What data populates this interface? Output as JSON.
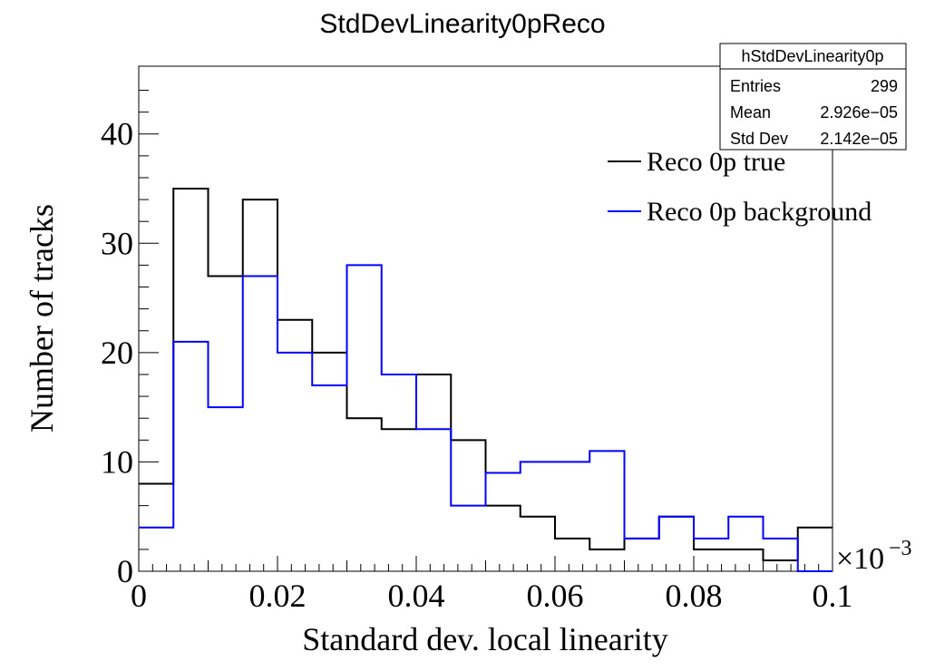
{
  "chart_data": {
    "type": "histogram",
    "title": "StdDevLinearity0pReco",
    "xlabel": "Standard dev. local linearity",
    "ylabel": "Number of tracks",
    "x_exponent_label": "×10",
    "x_exponent_power": "−3",
    "xlim": [
      0,
      0.1
    ],
    "ylim": [
      0,
      46.2
    ],
    "x_ticks": [
      {
        "value": 0,
        "label": "0"
      },
      {
        "value": 0.02,
        "label": "0.02"
      },
      {
        "value": 0.04,
        "label": "0.04"
      },
      {
        "value": 0.06,
        "label": "0.06"
      },
      {
        "value": 0.08,
        "label": "0.08"
      },
      {
        "value": 0.1,
        "label": "0.1"
      }
    ],
    "y_ticks": [
      {
        "value": 0,
        "label": "0"
      },
      {
        "value": 10,
        "label": "10"
      },
      {
        "value": 20,
        "label": "20"
      },
      {
        "value": 30,
        "label": "30"
      },
      {
        "value": 40,
        "label": "40"
      }
    ],
    "bin_edges": [
      0,
      0.005,
      0.01,
      0.015,
      0.02,
      0.025,
      0.03,
      0.035,
      0.04,
      0.045,
      0.05,
      0.055,
      0.06,
      0.065,
      0.07,
      0.075,
      0.08,
      0.085,
      0.09,
      0.095,
      0.1
    ],
    "series": [
      {
        "name": "Reco 0p true",
        "color": "#000000",
        "values": [
          8,
          35,
          27,
          34,
          23,
          20,
          14,
          13,
          18,
          12,
          6,
          5,
          3,
          2,
          3,
          5,
          2,
          2,
          1,
          4
        ]
      },
      {
        "name": "Reco 0p background",
        "color": "#0000ff",
        "values": [
          4,
          21,
          15,
          27,
          20,
          17,
          28,
          18,
          13,
          6,
          9,
          10,
          10,
          11,
          3,
          5,
          3,
          5,
          3,
          0
        ]
      }
    ],
    "legend_position": "top-right",
    "grid": false
  },
  "stats_box": {
    "name": "hStdDevLinearity0p",
    "rows": [
      {
        "label": "Entries",
        "value": "299"
      },
      {
        "label": "Mean",
        "value": "2.926e−05"
      },
      {
        "label": "Std Dev",
        "value": "2.142e−05"
      }
    ]
  }
}
